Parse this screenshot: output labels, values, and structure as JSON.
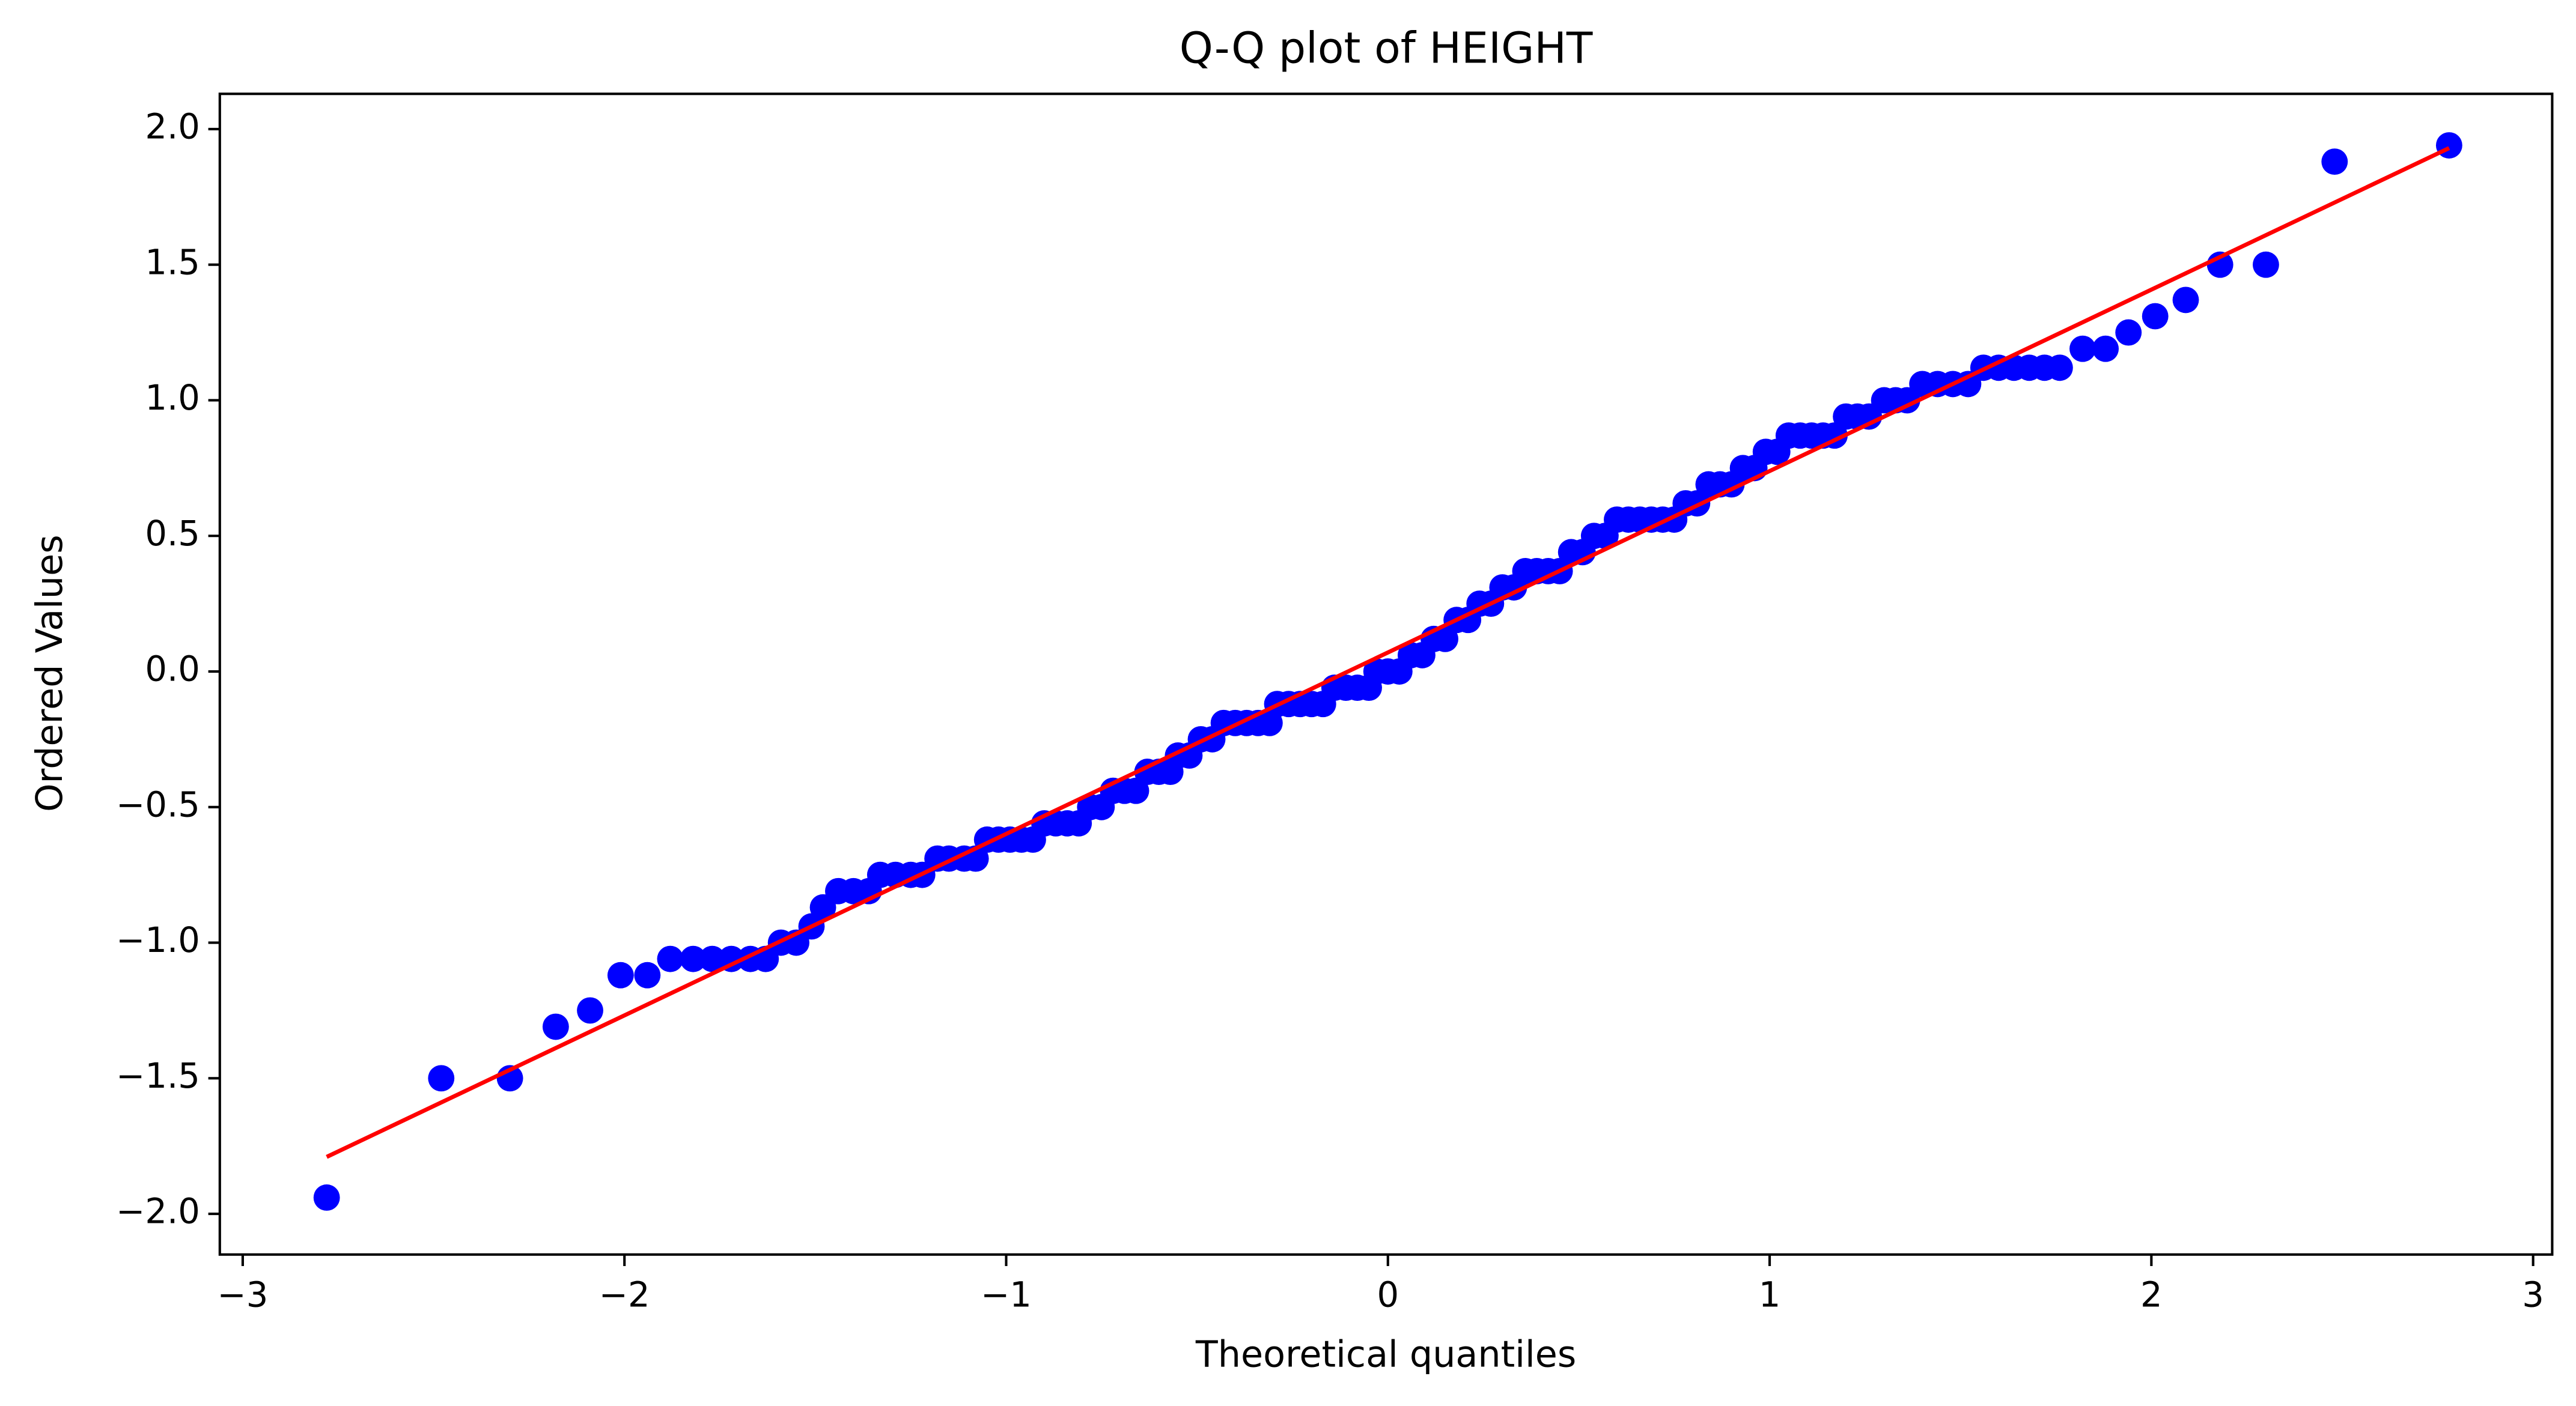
{
  "chart_data": {
    "type": "scatter",
    "title": "Q-Q plot of HEIGHT",
    "xlabel": "Theoretical quantiles",
    "ylabel": "Ordered Values",
    "xlim": [
      -3.06,
      3.05
    ],
    "ylim": [
      -2.15,
      2.13
    ],
    "xticks": [
      {
        "value": -3,
        "label": "−3"
      },
      {
        "value": -2,
        "label": "−2"
      },
      {
        "value": -1,
        "label": "−1"
      },
      0,
      1,
      2,
      3
    ],
    "yticks": [
      {
        "value": -2,
        "label": "−2.0"
      },
      {
        "value": -1.5,
        "label": "−1.5"
      },
      {
        "value": -1,
        "label": "−1.0"
      },
      {
        "value": -0.5,
        "label": "−0.5"
      },
      {
        "value": 0,
        "label": "0.0"
      },
      {
        "value": 0.5,
        "label": "0.5"
      },
      {
        "value": 1,
        "label": "1.0"
      },
      {
        "value": 1.5,
        "label": "1.5"
      },
      {
        "value": 2,
        "label": "2.0"
      }
    ],
    "points": {
      "color": "#0000ff",
      "x": [
        -2.78,
        -2.48,
        -2.3,
        -2.18,
        -2.09,
        -2.01,
        -1.94,
        -1.88,
        -1.82,
        -1.77,
        -1.72,
        -1.67,
        -1.63,
        -1.59,
        -1.55,
        -1.51,
        -1.48,
        -1.44,
        -1.4,
        -1.36,
        -1.33,
        -1.29,
        -1.25,
        -1.22,
        -1.18,
        -1.15,
        -1.11,
        -1.08,
        -1.05,
        -1.02,
        -0.99,
        -0.96,
        -0.93,
        -0.9,
        -0.87,
        -0.84,
        -0.81,
        -0.78,
        -0.75,
        -0.72,
        -0.69,
        -0.66,
        -0.63,
        -0.6,
        -0.57,
        -0.55,
        -0.52,
        -0.49,
        -0.46,
        -0.43,
        -0.4,
        -0.37,
        -0.34,
        -0.31,
        -0.29,
        -0.26,
        -0.23,
        -0.2,
        -0.17,
        -0.14,
        -0.11,
        -0.08,
        -0.05,
        -0.03,
        0.0,
        0.03,
        0.06,
        0.09,
        0.12,
        0.15,
        0.18,
        0.21,
        0.24,
        0.27,
        0.3,
        0.33,
        0.36,
        0.39,
        0.42,
        0.45,
        0.48,
        0.51,
        0.54,
        0.57,
        0.6,
        0.63,
        0.66,
        0.69,
        0.72,
        0.75,
        0.78,
        0.81,
        0.84,
        0.87,
        0.9,
        0.93,
        0.96,
        0.99,
        1.02,
        1.05,
        1.08,
        1.11,
        1.14,
        1.17,
        1.2,
        1.23,
        1.26,
        1.3,
        1.33,
        1.36,
        1.4,
        1.44,
        1.48,
        1.52,
        1.56,
        1.6,
        1.64,
        1.68,
        1.72,
        1.76,
        1.82,
        1.88,
        1.94,
        2.01,
        2.09,
        2.18,
        2.3,
        2.48,
        2.78
      ],
      "y": [
        -1.94,
        -1.5,
        -1.5,
        -1.31,
        -1.25,
        -1.12,
        -1.12,
        -1.06,
        -1.06,
        -1.06,
        -1.06,
        -1.06,
        -1.06,
        -1.0,
        -1.0,
        -0.94,
        -0.87,
        -0.81,
        -0.81,
        -0.81,
        -0.75,
        -0.75,
        -0.75,
        -0.75,
        -0.69,
        -0.69,
        -0.69,
        -0.69,
        -0.62,
        -0.62,
        -0.62,
        -0.62,
        -0.62,
        -0.56,
        -0.56,
        -0.56,
        -0.56,
        -0.5,
        -0.5,
        -0.44,
        -0.44,
        -0.44,
        -0.37,
        -0.37,
        -0.37,
        -0.31,
        -0.31,
        -0.25,
        -0.25,
        -0.19,
        -0.19,
        -0.19,
        -0.19,
        -0.19,
        -0.12,
        -0.12,
        -0.12,
        -0.12,
        -0.12,
        -0.06,
        -0.06,
        -0.06,
        -0.06,
        0,
        0,
        0,
        0.06,
        0.06,
        0.12,
        0.12,
        0.19,
        0.19,
        0.25,
        0.25,
        0.31,
        0.31,
        0.37,
        0.37,
        0.37,
        0.37,
        0.44,
        0.44,
        0.5,
        0.5,
        0.56,
        0.56,
        0.56,
        0.56,
        0.56,
        0.56,
        0.62,
        0.62,
        0.69,
        0.69,
        0.69,
        0.75,
        0.75,
        0.81,
        0.81,
        0.87,
        0.87,
        0.87,
        0.87,
        0.87,
        0.94,
        0.94,
        0.94,
        1.0,
        1.0,
        1.0,
        1.06,
        1.06,
        1.06,
        1.06,
        1.12,
        1.12,
        1.12,
        1.12,
        1.12,
        1.12,
        1.19,
        1.19,
        1.25,
        1.31,
        1.37,
        1.5,
        1.5,
        1.88,
        1.94
      ]
    },
    "fit_line": {
      "color": "#ff0000",
      "x": [
        -2.78,
        2.78
      ],
      "y": [
        -1.79,
        1.93
      ]
    }
  }
}
